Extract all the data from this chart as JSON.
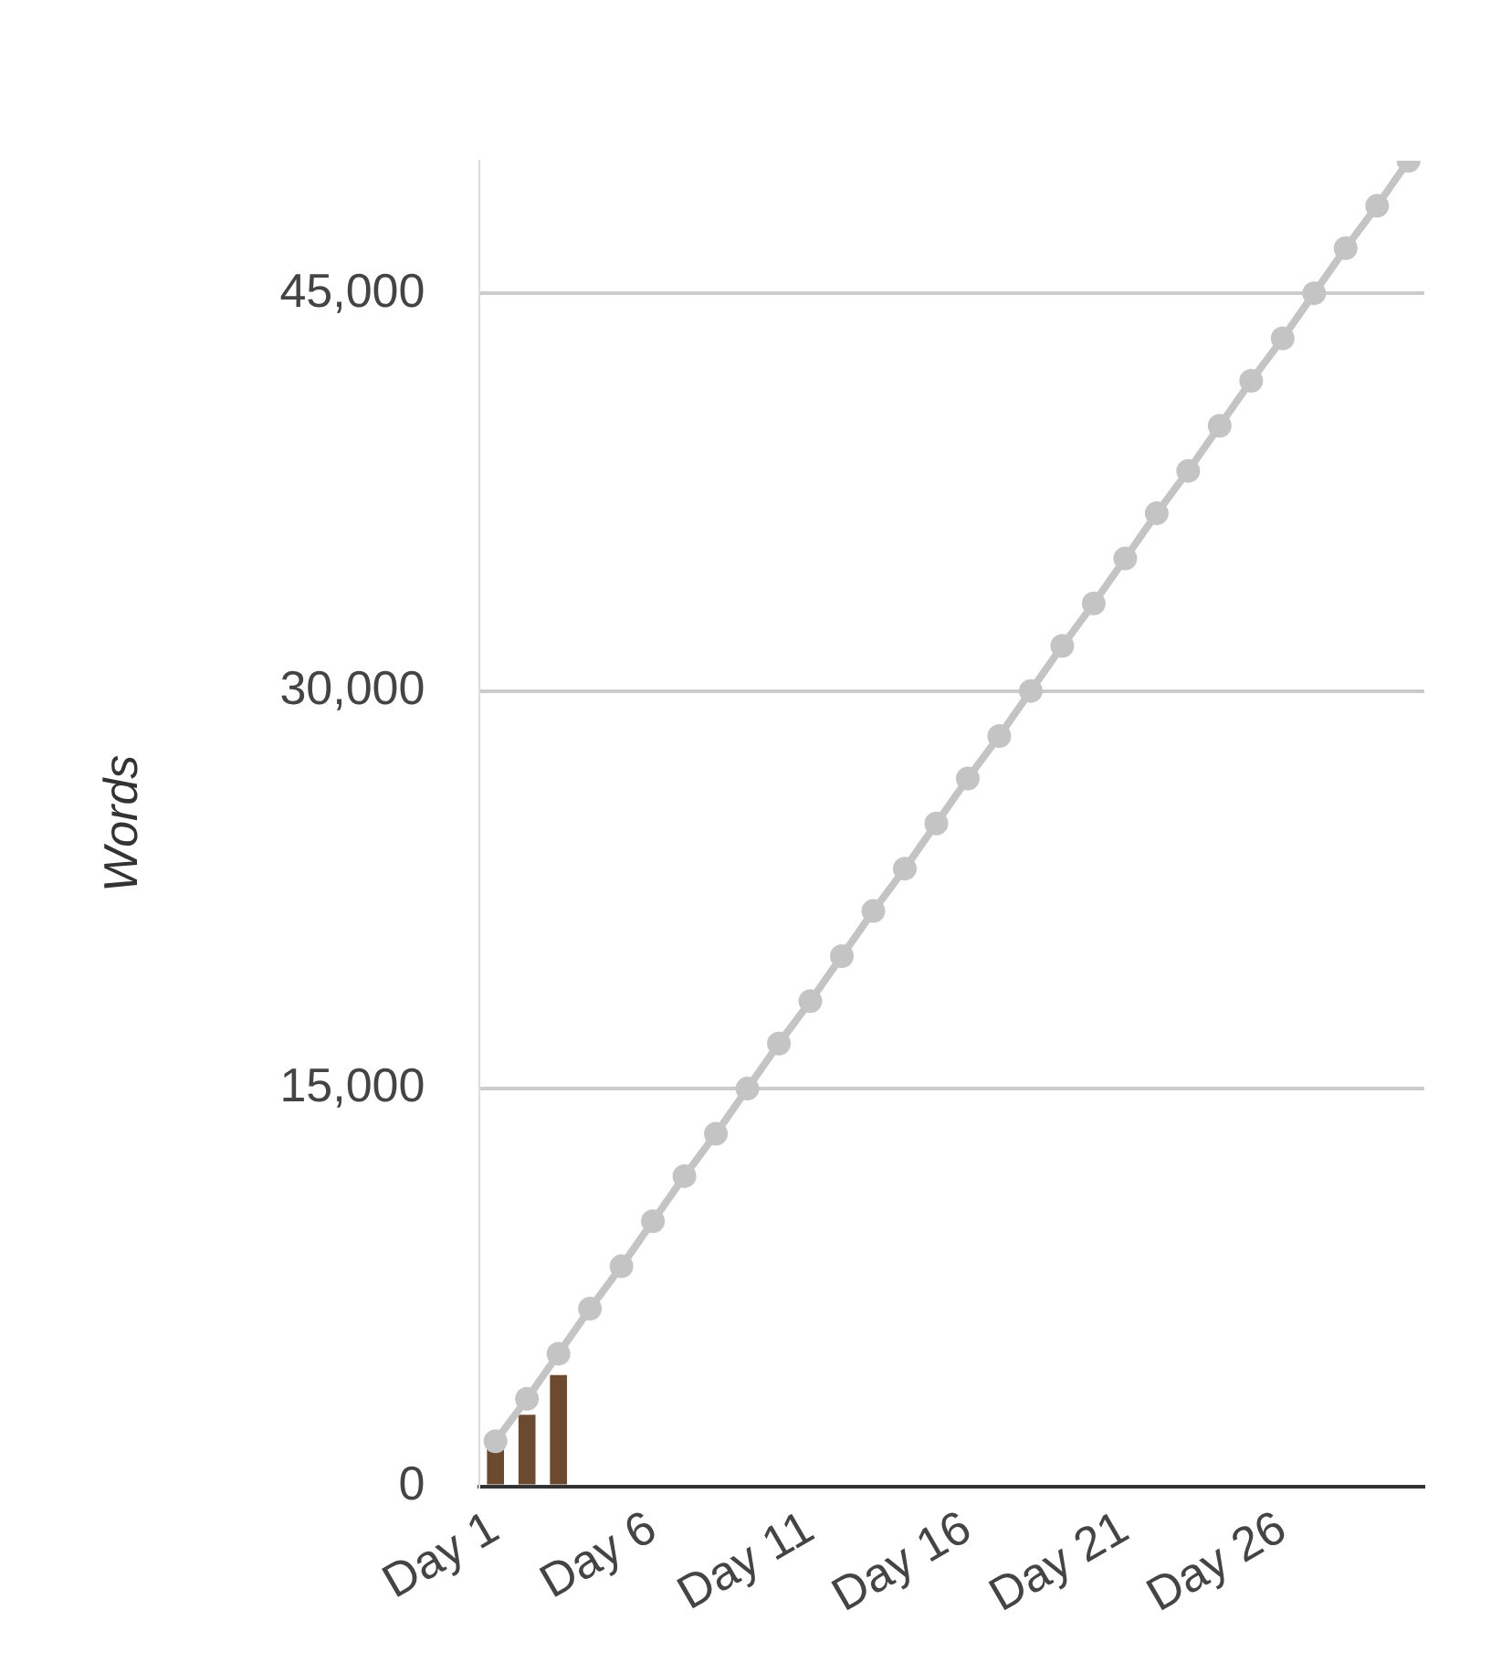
{
  "chart_data": {
    "type": "bar",
    "ylabel": "Words",
    "categories": [
      "Day 1",
      null,
      null,
      null,
      null,
      "Day 6",
      null,
      null,
      null,
      null,
      "Day 11",
      null,
      null,
      null,
      null,
      "Day 16",
      null,
      null,
      null,
      null,
      "Day 21",
      null,
      null,
      null,
      null,
      "Day 26",
      null,
      null,
      null,
      null
    ],
    "series": [
      {
        "color": "#6b4a30",
        "values": [
          1450,
          2700,
          4200,
          null,
          null,
          null,
          null,
          null,
          null,
          null,
          null,
          null,
          null,
          null,
          null,
          null,
          null,
          null,
          null,
          null,
          null,
          null,
          null,
          null,
          null,
          null,
          null,
          null,
          null,
          null
        ]
      },
      {
        "type": "line",
        "color": "#c4c4c4",
        "values": [
          1700,
          3300,
          5000,
          6700,
          8300,
          10000,
          11700,
          13300,
          15000,
          16700,
          18300,
          20000,
          21700,
          23300,
          25000,
          26700,
          28300,
          30000,
          31700,
          33300,
          35000,
          36700,
          38300,
          40000,
          41700,
          43300,
          45000,
          46700,
          48300,
          50000
        ]
      }
    ],
    "ylim": [
      0,
      50000
    ],
    "yticks": [
      {
        "value": 0,
        "label": "0"
      },
      {
        "value": 15000,
        "label": "15,000"
      },
      {
        "value": 30000,
        "label": "30,000"
      },
      {
        "value": 45000,
        "label": "45,000"
      }
    ],
    "grid": "y",
    "marker": "circle"
  }
}
